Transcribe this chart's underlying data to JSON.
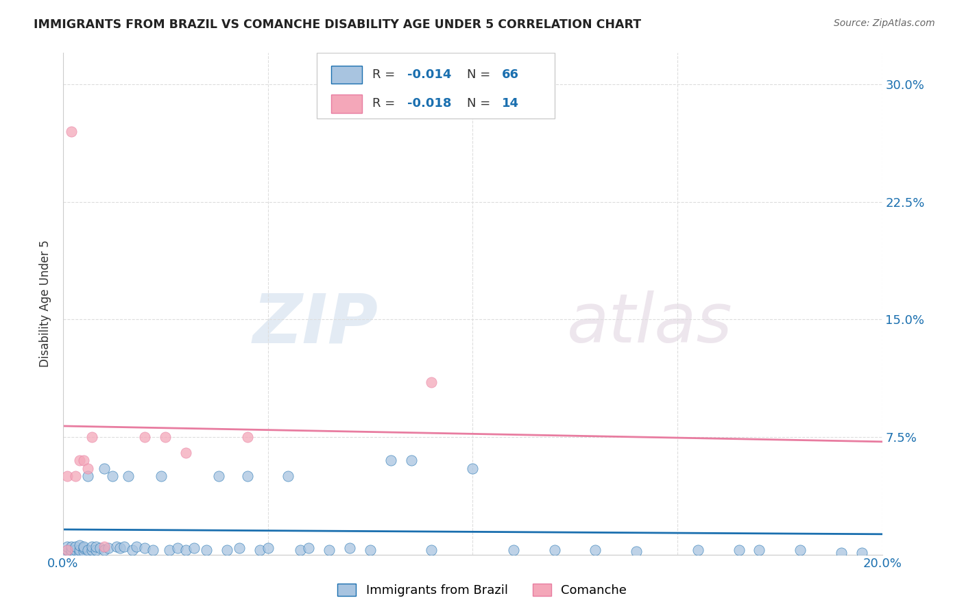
{
  "title": "IMMIGRANTS FROM BRAZIL VS COMANCHE DISABILITY AGE UNDER 5 CORRELATION CHART",
  "source": "Source: ZipAtlas.com",
  "ylabel": "Disability Age Under 5",
  "legend_r_brazil": "-0.014",
  "legend_n_brazil": "66",
  "legend_r_comanche": "-0.018",
  "legend_n_comanche": "14",
  "legend_label_brazil": "Immigrants from Brazil",
  "legend_label_comanche": "Comanche",
  "xlim": [
    0.0,
    0.2
  ],
  "ylim": [
    0.0,
    0.32
  ],
  "yticks": [
    0.0,
    0.075,
    0.15,
    0.225,
    0.3
  ],
  "ytick_labels": [
    "",
    "7.5%",
    "15.0%",
    "22.5%",
    "30.0%"
  ],
  "xticks": [
    0.0,
    0.05,
    0.1,
    0.15,
    0.2
  ],
  "xtick_labels": [
    "0.0%",
    "",
    "",
    "",
    "20.0%"
  ],
  "color_brazil": "#a8c4e0",
  "color_comanche": "#f4a7b9",
  "line_color_brazil": "#1a6faf",
  "line_color_comanche": "#e87ca0",
  "watermark_zip": "ZIP",
  "watermark_atlas": "atlas",
  "background_color": "#ffffff",
  "grid_color": "#dddddd",
  "brazil_x": [
    0.001,
    0.001,
    0.001,
    0.002,
    0.002,
    0.002,
    0.003,
    0.003,
    0.003,
    0.004,
    0.004,
    0.004,
    0.005,
    0.005,
    0.005,
    0.006,
    0.006,
    0.007,
    0.007,
    0.008,
    0.008,
    0.009,
    0.01,
    0.01,
    0.011,
    0.012,
    0.013,
    0.014,
    0.015,
    0.016,
    0.017,
    0.018,
    0.02,
    0.022,
    0.024,
    0.026,
    0.028,
    0.03,
    0.032,
    0.035,
    0.038,
    0.04,
    0.043,
    0.045,
    0.048,
    0.05,
    0.055,
    0.058,
    0.06,
    0.065,
    0.07,
    0.075,
    0.08,
    0.09,
    0.1,
    0.11,
    0.12,
    0.14,
    0.155,
    0.165,
    0.17,
    0.18,
    0.19,
    0.195,
    0.085,
    0.13
  ],
  "brazil_y": [
    0.001,
    0.003,
    0.005,
    0.001,
    0.003,
    0.005,
    0.001,
    0.003,
    0.005,
    0.001,
    0.003,
    0.006,
    0.002,
    0.004,
    0.005,
    0.003,
    0.05,
    0.003,
    0.005,
    0.003,
    0.005,
    0.004,
    0.003,
    0.055,
    0.004,
    0.05,
    0.005,
    0.004,
    0.005,
    0.05,
    0.003,
    0.005,
    0.004,
    0.003,
    0.05,
    0.003,
    0.004,
    0.003,
    0.004,
    0.003,
    0.05,
    0.003,
    0.004,
    0.05,
    0.003,
    0.004,
    0.05,
    0.003,
    0.004,
    0.003,
    0.004,
    0.003,
    0.06,
    0.003,
    0.055,
    0.003,
    0.003,
    0.002,
    0.003,
    0.003,
    0.003,
    0.003,
    0.001,
    0.001,
    0.06,
    0.003
  ],
  "comanche_x": [
    0.001,
    0.001,
    0.002,
    0.003,
    0.004,
    0.005,
    0.006,
    0.007,
    0.01,
    0.02,
    0.025,
    0.03,
    0.045,
    0.09
  ],
  "comanche_y": [
    0.05,
    0.003,
    0.27,
    0.05,
    0.06,
    0.06,
    0.055,
    0.075,
    0.005,
    0.075,
    0.075,
    0.065,
    0.075,
    0.11
  ],
  "brazil_line_x": [
    0.0,
    0.2
  ],
  "brazil_line_y": [
    0.016,
    0.013
  ],
  "comanche_line_x": [
    0.0,
    0.2
  ],
  "comanche_line_y": [
    0.082,
    0.072
  ]
}
